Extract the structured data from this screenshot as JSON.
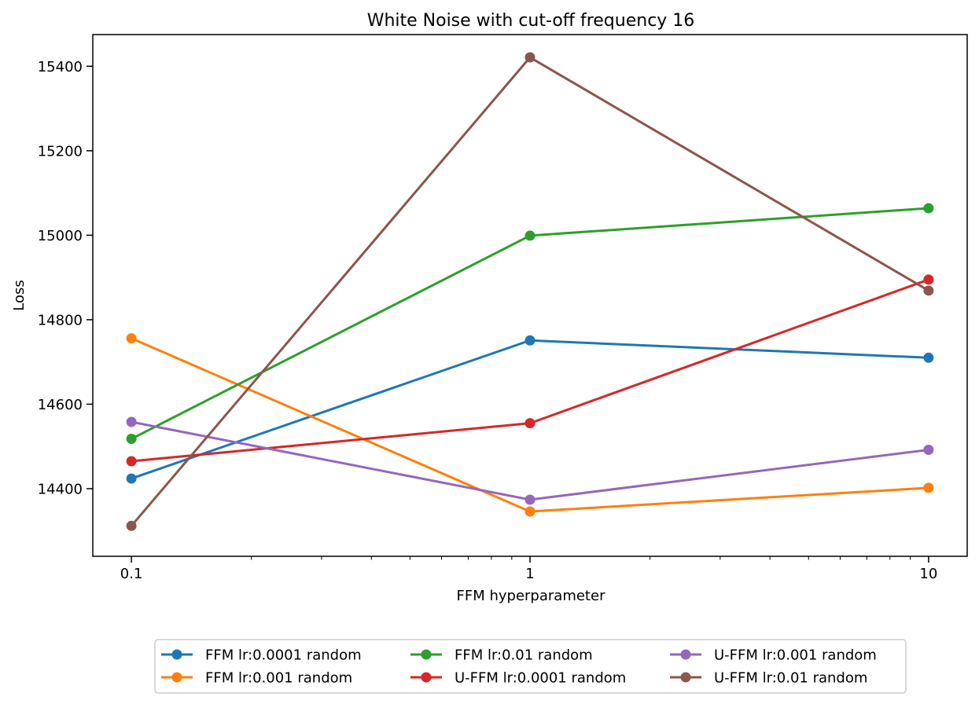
{
  "chart_data": {
    "type": "line",
    "title": "White Noise with cut-off frequency 16",
    "xlabel": "FFM hyperparameter",
    "ylabel": "Loss",
    "xscale": "log",
    "x": [
      0.1,
      1,
      10
    ],
    "x_tick_labels": [
      "0.1",
      "1",
      "10"
    ],
    "xlim": [
      0.08,
      12.5
    ],
    "ylim": [
      14240,
      15475
    ],
    "y_ticks": [
      14400,
      14600,
      14800,
      15000,
      15200,
      15400
    ],
    "y_tick_labels": [
      "14400",
      "14600",
      "14800",
      "15000",
      "15200",
      "15400"
    ],
    "legend_position": "bottom-center",
    "series": [
      {
        "name": "FFM lr:0.0001 random",
        "color": "#1f77b4",
        "values": [
          14424,
          14751,
          14710
        ]
      },
      {
        "name": "FFM lr:0.001 random",
        "color": "#ff7f0e",
        "values": [
          14756,
          14346,
          14402
        ]
      },
      {
        "name": "FFM lr:0.01 random",
        "color": "#2ca02c",
        "values": [
          14518,
          14999,
          15064
        ]
      },
      {
        "name": "U-FFM lr:0.0001 random",
        "color": "#d62728",
        "values": [
          14465,
          14555,
          14895
        ]
      },
      {
        "name": "U-FFM lr:0.001 random",
        "color": "#9467bd",
        "values": [
          14558,
          14374,
          14492
        ]
      },
      {
        "name": "U-FFM lr:0.01 random",
        "color": "#8c564b",
        "values": [
          14312,
          15421,
          14869
        ]
      }
    ]
  }
}
